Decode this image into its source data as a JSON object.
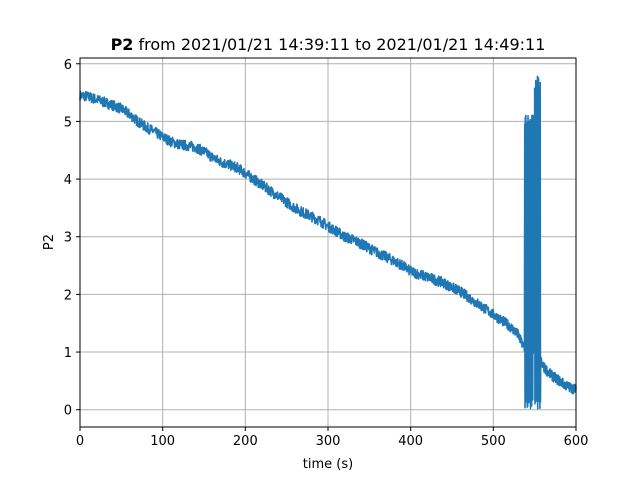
{
  "chart_data": {
    "type": "line",
    "title": {
      "bold_part": "P2",
      "rest": " from 2021/01/21 14:39:11 to 2021/01/21 14:49:11"
    },
    "xlabel": "time (s)",
    "ylabel": "P2",
    "xlim": [
      0,
      600
    ],
    "ylim": [
      -0.3,
      6.1
    ],
    "grid": true,
    "xticks": [
      0,
      100,
      200,
      300,
      400,
      500,
      600
    ],
    "yticks": [
      0,
      1,
      2,
      3,
      4,
      5,
      6
    ],
    "series": [
      {
        "color": "#1f77b4",
        "x": [
          0,
          10,
          20,
          30,
          40,
          50,
          60,
          70,
          80,
          90,
          100,
          110,
          120,
          130,
          140,
          150,
          160,
          170,
          180,
          190,
          200,
          210,
          220,
          230,
          240,
          250,
          260,
          270,
          280,
          290,
          300,
          310,
          320,
          330,
          340,
          350,
          360,
          370,
          380,
          390,
          400,
          410,
          420,
          430,
          440,
          450,
          460,
          470,
          480,
          490,
          500,
          510,
          520,
          530,
          536,
          540,
          545,
          550,
          553,
          556,
          560,
          570,
          580,
          590,
          600
        ],
        "y": [
          5.45,
          5.43,
          5.38,
          5.33,
          5.28,
          5.22,
          5.12,
          5.0,
          4.9,
          4.82,
          4.73,
          4.65,
          4.6,
          4.58,
          4.55,
          4.48,
          4.38,
          4.3,
          4.25,
          4.2,
          4.1,
          4.0,
          3.9,
          3.8,
          3.7,
          3.6,
          3.5,
          3.42,
          3.35,
          3.28,
          3.18,
          3.1,
          3.0,
          2.95,
          2.88,
          2.8,
          2.72,
          2.65,
          2.58,
          2.5,
          2.4,
          2.35,
          2.3,
          2.25,
          2.2,
          2.12,
          2.05,
          1.95,
          1.85,
          1.75,
          1.65,
          1.55,
          1.45,
          1.3,
          1.1,
          0.95,
          0.95,
          1.1,
          1.05,
          0.9,
          0.75,
          0.6,
          0.5,
          0.4,
          0.35
        ],
        "noise": 0.09,
        "spikes": [
          {
            "x_start": 538,
            "x_end": 548,
            "min": 0.0,
            "max": 5.15
          },
          {
            "x_start": 550,
            "x_end": 557,
            "min": 0.0,
            "max": 5.82
          }
        ]
      }
    ]
  }
}
